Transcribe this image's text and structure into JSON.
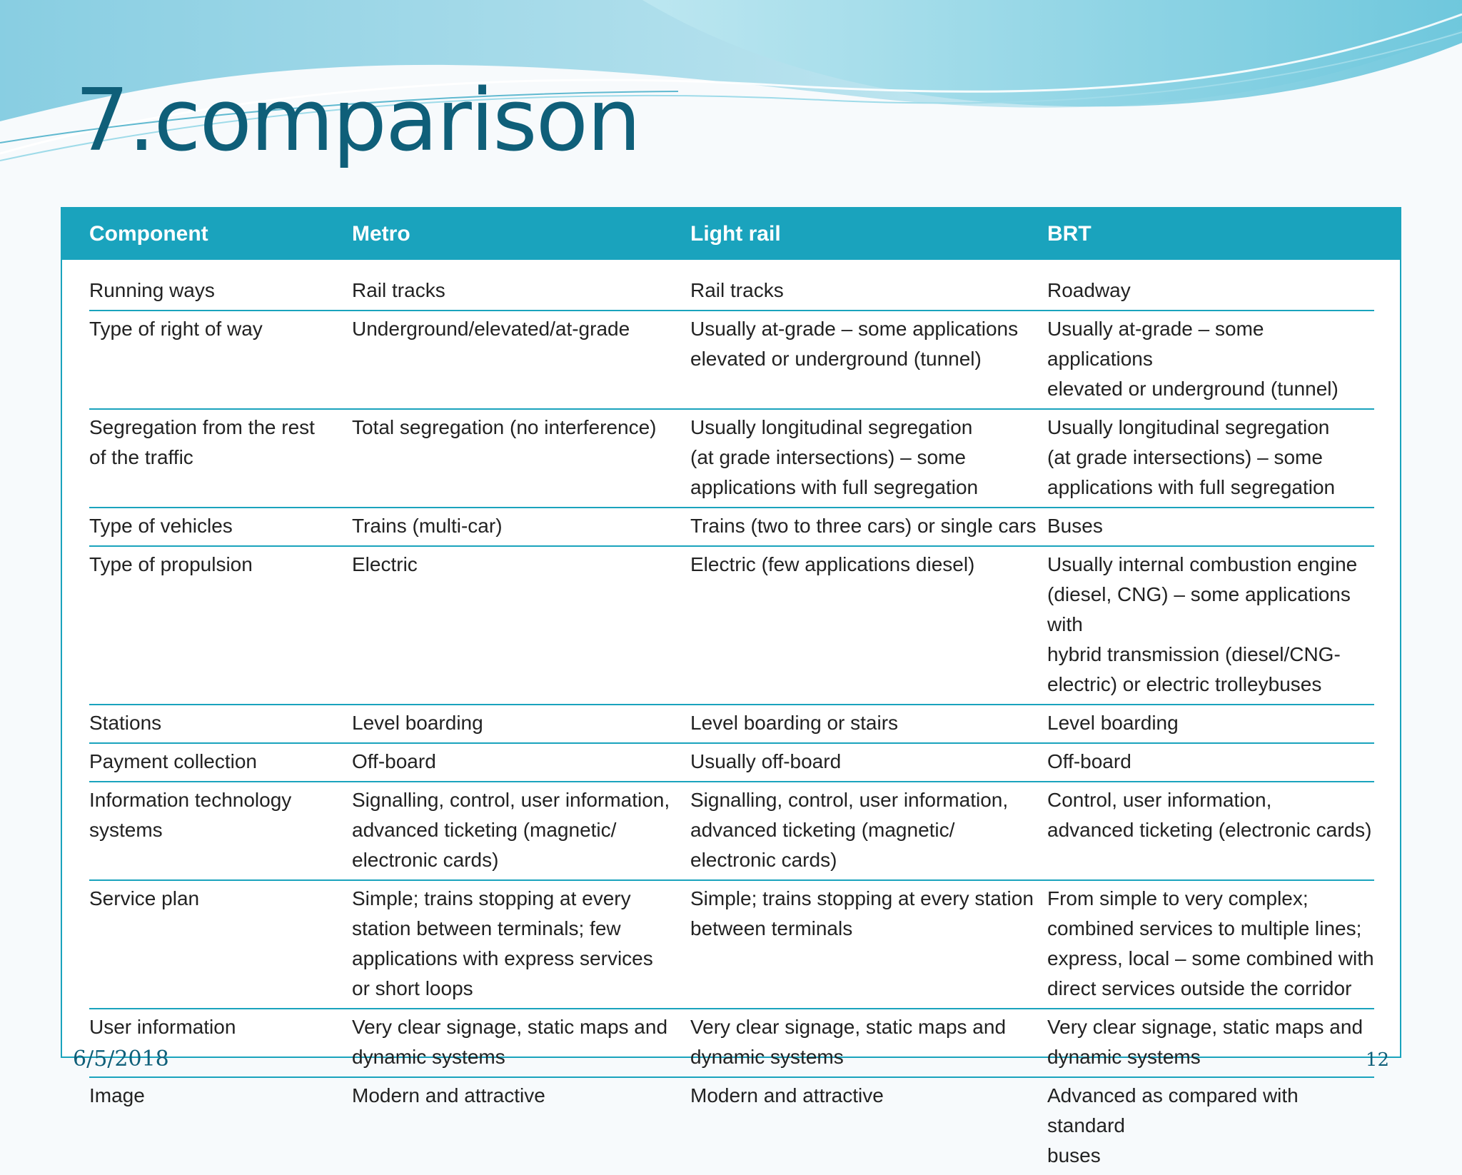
{
  "slide": {
    "title": "7.comparison",
    "date": "6/5/2018",
    "page_number": "12"
  },
  "colors": {
    "title": "#0f5f79",
    "header_bg": "#1aa3bd",
    "row_divider": "#1aa3bd",
    "wave_light": "#bfe8f1",
    "wave_mid": "#6fc6dc"
  },
  "table": {
    "headers": [
      "Component",
      "Metro",
      "Light rail",
      "BRT"
    ],
    "rows": [
      [
        "Running ways",
        "Rail tracks",
        "Rail tracks",
        "Roadway"
      ],
      [
        "Type of right of way",
        "Underground/elevated/at-grade",
        "Usually at-grade – some applications\nelevated or underground (tunnel)",
        "Usually at-grade – some applications\nelevated or underground (tunnel)"
      ],
      [
        "Segregation from the rest\nof the traffic",
        "Total segregation (no interference)",
        "Usually longitudinal segregation\n(at grade intersections) – some\napplications with full segregation",
        "Usually longitudinal segregation\n(at grade intersections) – some\napplications with full segregation"
      ],
      [
        "Type of vehicles",
        "Trains (multi-car)",
        "Trains (two to three cars) or single cars",
        "Buses"
      ],
      [
        "Type of propulsion",
        "Electric",
        "Electric (few applications diesel)",
        "Usually internal combustion engine\n(diesel, CNG) – some applications with\nhybrid transmission (diesel/CNG-\nelectric) or electric trolleybuses"
      ],
      [
        "Stations",
        "Level boarding",
        "Level boarding or stairs",
        "Level boarding"
      ],
      [
        "Payment collection",
        "Off-board",
        "Usually off-board",
        "Off-board"
      ],
      [
        "Information technology\nsystems",
        "Signalling, control, user information,\nadvanced ticketing (magnetic/\nelectronic cards)",
        "Signalling, control, user information,\nadvanced ticketing (magnetic/\nelectronic cards)",
        "Control, user information,\nadvanced ticketing (electronic cards)"
      ],
      [
        "Service plan",
        "Simple; trains stopping at every\nstation between terminals; few\napplications with express services\nor short loops",
        "Simple; trains stopping at every station\nbetween terminals",
        "From simple to very complex;\ncombined services to multiple lines;\nexpress, local – some combined with\ndirect services outside the corridor"
      ],
      [
        "User information",
        "Very clear signage, static maps and\ndynamic systems",
        "Very clear signage, static maps and\ndynamic systems",
        "Very clear signage, static maps and\ndynamic systems"
      ],
      [
        "Image",
        "Modern and attractive",
        "Modern and attractive",
        "Advanced as compared with standard\nbuses"
      ]
    ]
  }
}
